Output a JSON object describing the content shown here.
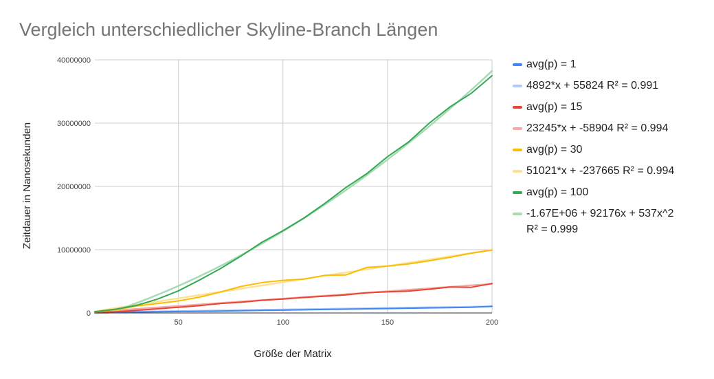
{
  "chart_data": {
    "type": "line",
    "title": "Vergleich unterschiedlicher Skyline-Branch Längen",
    "xlabel": "Größe der Matrix",
    "ylabel": "Zeitdauer in Nanosekunden",
    "xlim": [
      10,
      200
    ],
    "ylim": [
      0,
      40000000
    ],
    "xticks": [
      50,
      100,
      150,
      200
    ],
    "yticks": [
      0,
      10000000,
      20000000,
      30000000,
      40000000
    ],
    "ytick_labels": [
      "0",
      "10000000",
      "20000000",
      "30000000",
      "40000000"
    ],
    "xtick_labels": [
      "50",
      "100",
      "150",
      "200"
    ],
    "grid": true,
    "legend_position": "right",
    "x": [
      10,
      20,
      30,
      40,
      50,
      60,
      70,
      80,
      90,
      100,
      110,
      120,
      130,
      140,
      150,
      160,
      170,
      180,
      190,
      200
    ],
    "series": [
      {
        "name": "avg(p) = 1",
        "color": "#4285f4",
        "kind": "data",
        "values": [
          50000,
          100000,
          150000,
          200000,
          230000,
          260000,
          300000,
          350000,
          400000,
          450000,
          500000,
          550000,
          600000,
          650000,
          700000,
          750000,
          800000,
          850000,
          900000,
          1050000
        ]
      },
      {
        "name": "4892*x + 55824 R² = 0.991",
        "color": "#aecbfa",
        "kind": "trendline",
        "equation": {
          "type": "linear",
          "slope": 4892,
          "intercept": 55824
        }
      },
      {
        "name": "avg(p) = 15",
        "color": "#ea4335",
        "kind": "data",
        "values": [
          100000,
          200000,
          400000,
          650000,
          900000,
          1150000,
          1500000,
          1700000,
          2000000,
          2200000,
          2450000,
          2650000,
          2850000,
          3200000,
          3350000,
          3450000,
          3750000,
          4100000,
          4050000,
          4650000
        ]
      },
      {
        "name": "23245*x + -58904 R² = 0.994",
        "color": "#f4a9a3",
        "kind": "trendline",
        "equation": {
          "type": "linear",
          "slope": 23245,
          "intercept": -58904
        }
      },
      {
        "name": "avg(p) = 30",
        "color": "#fbbc04",
        "kind": "data",
        "values": [
          150000,
          500000,
          1100000,
          1500000,
          1900000,
          2500000,
          3300000,
          4200000,
          4800000,
          5150000,
          5350000,
          5950000,
          6000000,
          7200000,
          7400000,
          7750000,
          8250000,
          8800000,
          9450000,
          9950000
        ]
      },
      {
        "name": "51021*x + -237665 R² = 0.994",
        "color": "#fde293",
        "kind": "trendline",
        "equation": {
          "type": "linear",
          "slope": 51021,
          "intercept": -237665
        }
      },
      {
        "name": "avg(p) = 100",
        "color": "#34a853",
        "kind": "data",
        "values": [
          200000,
          600000,
          1200000,
          2200000,
          3500000,
          5200000,
          7000000,
          9000000,
          11200000,
          13000000,
          15000000,
          17300000,
          19800000,
          22000000,
          24700000,
          27000000,
          30000000,
          32600000,
          34700000,
          37500000
        ]
      },
      {
        "name": "-1.67E+06 + 92176x + 537x^2\nR² = 0.999",
        "color": "#a8dab5",
        "kind": "trendline",
        "equation": {
          "type": "quadratic",
          "c0": -1670000,
          "c1": 92176,
          "c2": 537
        }
      }
    ]
  }
}
